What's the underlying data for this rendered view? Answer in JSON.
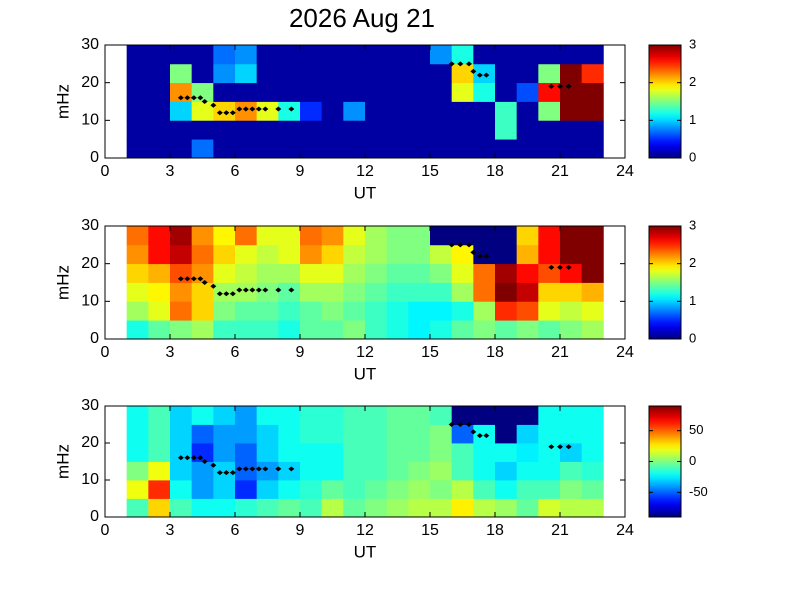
{
  "title": "2026 Aug 21",
  "chart_data": [
    {
      "type": "heatmap",
      "xlabel": "UT",
      "ylabel": "mHz",
      "xlim": [
        0,
        24
      ],
      "xticks": [
        0,
        3,
        6,
        9,
        12,
        15,
        18,
        21,
        24
      ],
      "ylim": [
        0,
        30
      ],
      "yticks": [
        0,
        10,
        20,
        30
      ],
      "clim": [
        0,
        3
      ],
      "cticks": [
        0,
        1,
        2,
        3
      ],
      "x_edges": [
        1,
        2,
        3,
        4,
        5,
        6,
        7,
        8,
        9,
        10,
        11,
        12,
        13,
        14,
        15,
        16,
        17,
        18,
        19,
        20,
        21,
        22,
        23
      ],
      "y_edges": [
        0,
        5,
        10,
        15,
        20,
        25,
        30
      ],
      "z": [
        [
          0.1,
          0.1,
          0.1,
          0.7,
          0.1,
          0.1,
          0.1,
          0.1,
          0.1,
          0.1,
          0.1,
          0.1,
          0.1,
          0.1,
          0.1,
          0.1,
          0.1,
          0.1,
          0.1,
          0.1,
          0.1,
          0.1
        ],
        [
          0.1,
          0.1,
          0.1,
          0.1,
          0.1,
          0.1,
          0.1,
          0.1,
          0.1,
          0.1,
          0.1,
          0.1,
          0.1,
          0.1,
          0.1,
          0.1,
          0.1,
          1.3,
          0.1,
          0.1,
          0.1,
          0.1
        ],
        [
          0.1,
          0.1,
          1.0,
          1.8,
          2.0,
          2.2,
          1.8,
          1.2,
          0.5,
          0.1,
          0.8,
          0.1,
          0.1,
          0.1,
          0.1,
          0.1,
          0.1,
          1.3,
          0.1,
          1.5,
          3,
          3
        ],
        [
          0.1,
          0.1,
          2.2,
          1.5,
          0.1,
          0.1,
          0.1,
          0.1,
          0.1,
          0.1,
          0.1,
          0.1,
          0.1,
          0.1,
          0.1,
          1.8,
          1.2,
          0.1,
          0.6,
          2.6,
          3,
          3
        ],
        [
          0.1,
          0.1,
          1.5,
          0.1,
          0.8,
          1.0,
          0.1,
          0.1,
          0.1,
          0.1,
          0.1,
          0.1,
          0.1,
          0.1,
          0.1,
          2.0,
          1.0,
          0.1,
          0.1,
          1.5,
          3,
          2.5
        ],
        [
          0.1,
          0.1,
          0.1,
          0.1,
          0.7,
          0.8,
          0.1,
          0.1,
          0.1,
          0.1,
          0.1,
          0.1,
          0.1,
          0.1,
          0.8,
          1.2,
          0.1,
          0.1,
          0.1,
          0.1,
          0.1,
          0.1
        ]
      ],
      "points": {
        "color": "#000000",
        "x": [
          3.5,
          3.8,
          4.1,
          4.4,
          4.6,
          5.0,
          5.3,
          5.6,
          5.9,
          6.2,
          6.5,
          6.8,
          7.1,
          7.4,
          8.0,
          8.6,
          16.0,
          16.4,
          16.8,
          17.0,
          17.3,
          17.6,
          20.6,
          21.0,
          21.4
        ],
        "y": [
          16,
          16,
          16,
          16,
          15,
          14,
          12,
          12,
          12,
          13,
          13,
          13,
          13,
          13,
          13,
          13,
          25,
          25,
          25,
          23,
          22,
          22,
          19,
          19,
          19
        ]
      }
    },
    {
      "type": "heatmap",
      "xlabel": "UT",
      "ylabel": "mHz",
      "xlim": [
        0,
        24
      ],
      "xticks": [
        0,
        3,
        6,
        9,
        12,
        15,
        18,
        21,
        24
      ],
      "ylim": [
        0,
        30
      ],
      "yticks": [
        0,
        10,
        20,
        30
      ],
      "clim": [
        0,
        3
      ],
      "cticks": [
        0,
        1,
        2,
        3
      ],
      "x_edges": [
        1,
        2,
        3,
        4,
        5,
        6,
        7,
        8,
        9,
        10,
        11,
        12,
        13,
        14,
        15,
        16,
        17,
        18,
        19,
        20,
        21,
        22,
        23
      ],
      "y_edges": [
        0,
        5,
        10,
        15,
        20,
        25,
        30
      ],
      "z": [
        [
          1.2,
          1.4,
          1.5,
          1.6,
          1.3,
          1.3,
          1.3,
          1.2,
          1.4,
          1.4,
          1.5,
          1.3,
          1.2,
          1.1,
          1.2,
          1.4,
          1.5,
          1.4,
          1.5,
          1.4,
          1.5,
          1.6
        ],
        [
          1.6,
          1.8,
          2.3,
          2.0,
          1.5,
          1.4,
          1.4,
          1.3,
          1.4,
          1.5,
          1.4,
          1.3,
          1.2,
          1.1,
          1.1,
          1.2,
          1.6,
          2.5,
          2.4,
          1.8,
          1.7,
          1.8
        ],
        [
          1.8,
          1.9,
          2.2,
          2.0,
          1.6,
          1.6,
          1.5,
          1.4,
          1.6,
          1.6,
          1.5,
          1.4,
          1.3,
          1.3,
          1.3,
          1.6,
          2.3,
          3.0,
          2.8,
          2.0,
          2.0,
          2.1
        ],
        [
          2.0,
          2.1,
          2.4,
          2.2,
          1.8,
          1.7,
          1.6,
          1.6,
          1.8,
          1.8,
          1.6,
          1.5,
          1.4,
          1.4,
          1.5,
          1.8,
          2.3,
          2.9,
          2.6,
          2.4,
          2.6,
          3.0
        ],
        [
          2.2,
          2.6,
          2.8,
          2.3,
          2.0,
          1.8,
          1.7,
          1.8,
          2.2,
          2.0,
          1.7,
          1.6,
          1.5,
          1.5,
          1.7,
          1.9,
          0,
          0,
          2.1,
          2.6,
          3.0,
          3.0
        ],
        [
          2.3,
          2.6,
          2.9,
          2.2,
          1.9,
          2.3,
          1.8,
          1.8,
          2.3,
          2.2,
          1.8,
          1.6,
          1.5,
          1.5,
          0,
          0,
          0,
          0,
          2.0,
          2.6,
          3.0,
          3.0
        ]
      ],
      "points": {
        "color": "#000000",
        "x": [
          3.5,
          3.8,
          4.1,
          4.4,
          4.6,
          5.0,
          5.3,
          5.6,
          5.9,
          6.2,
          6.5,
          6.8,
          7.1,
          7.4,
          8.0,
          8.6,
          16.0,
          16.4,
          16.8,
          17.0,
          17.3,
          17.6,
          20.6,
          21.0,
          21.4
        ],
        "y": [
          16,
          16,
          16,
          16,
          15,
          14,
          12,
          12,
          12,
          13,
          13,
          13,
          13,
          13,
          13,
          13,
          25,
          25,
          25,
          23,
          22,
          22,
          19,
          19,
          19
        ]
      }
    },
    {
      "type": "heatmap",
      "xlabel": "UT",
      "ylabel": "mHz",
      "xlim": [
        0,
        24
      ],
      "xticks": [
        0,
        3,
        6,
        9,
        12,
        15,
        18,
        21,
        24
      ],
      "ylim": [
        0,
        30
      ],
      "yticks": [
        0,
        10,
        20,
        30
      ],
      "clim": [
        -90,
        90
      ],
      "cticks": [
        -50,
        0,
        50
      ],
      "x_edges": [
        1,
        2,
        3,
        4,
        5,
        6,
        7,
        8,
        9,
        10,
        11,
        12,
        13,
        14,
        15,
        16,
        17,
        18,
        19,
        20,
        21,
        22,
        23
      ],
      "y_edges": [
        0,
        5,
        10,
        15,
        20,
        25,
        30
      ],
      "z": [
        [
          -10,
          30,
          -10,
          -20,
          -20,
          -15,
          -10,
          -5,
          -10,
          10,
          -5,
          0,
          5,
          10,
          10,
          25,
          10,
          5,
          -5,
          15,
          10,
          10
        ],
        [
          20,
          60,
          -20,
          -40,
          -30,
          -60,
          -30,
          -20,
          -15,
          -5,
          -10,
          -5,
          0,
          5,
          0,
          10,
          -10,
          -20,
          -10,
          -10,
          0,
          -5
        ],
        [
          0,
          20,
          -30,
          -40,
          -30,
          -50,
          -40,
          -30,
          -20,
          -20,
          -10,
          -10,
          -5,
          0,
          5,
          -10,
          -20,
          -30,
          -20,
          -20,
          -10,
          -15
        ],
        [
          -20,
          -10,
          -30,
          -60,
          -40,
          -50,
          -30,
          -20,
          -20,
          -20,
          -10,
          -10,
          -5,
          -5,
          0,
          -10,
          -20,
          -20,
          -25,
          -20,
          -30,
          -20
        ],
        [
          -20,
          -10,
          -30,
          -50,
          -40,
          -40,
          -30,
          -20,
          -15,
          -15,
          -10,
          -10,
          -5,
          -5,
          0,
          -50,
          -20,
          -90,
          -30,
          -20,
          -20,
          -20
        ],
        [
          -20,
          -10,
          -30,
          -20,
          -30,
          -40,
          -20,
          -20,
          -15,
          -15,
          -10,
          -10,
          -5,
          -5,
          -10,
          -90,
          -90,
          -90,
          -90,
          -20,
          -20,
          -20
        ]
      ],
      "points": {
        "color": "#000000",
        "x": [
          3.5,
          3.8,
          4.1,
          4.4,
          4.6,
          5.0,
          5.3,
          5.6,
          5.9,
          6.2,
          6.5,
          6.8,
          7.1,
          7.4,
          8.0,
          8.6,
          16.0,
          16.4,
          16.8,
          17.0,
          17.3,
          17.6,
          20.6,
          21.0,
          21.4
        ],
        "y": [
          16,
          16,
          16,
          16,
          15,
          14,
          12,
          12,
          12,
          13,
          13,
          13,
          13,
          13,
          13,
          13,
          25,
          25,
          25,
          23,
          22,
          22,
          19,
          19,
          19
        ]
      }
    }
  ]
}
